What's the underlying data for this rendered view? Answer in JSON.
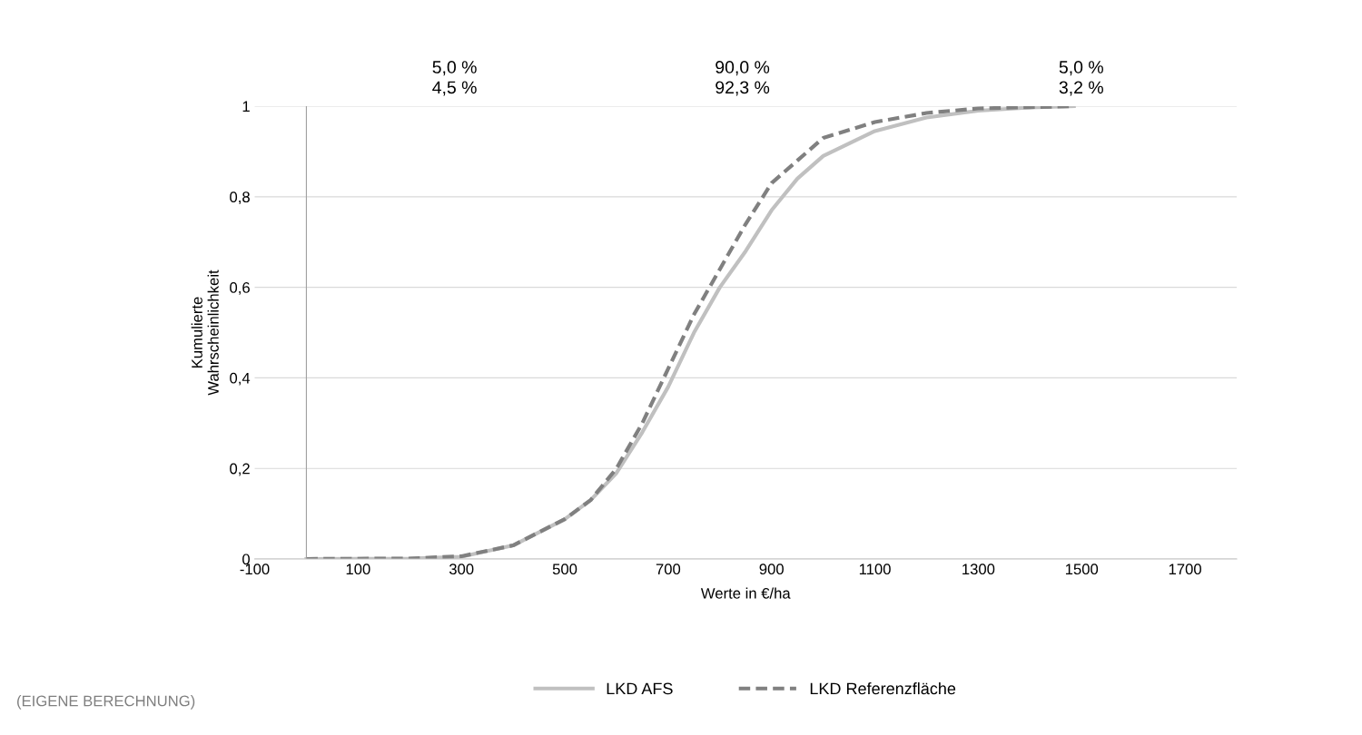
{
  "chart_data": {
    "type": "line",
    "xlabel": "Werte in €/ha",
    "ylabel": "Kumulierte\nWahrscheinlichkeit",
    "x": [
      0,
      200,
      300,
      400,
      500,
      550,
      600,
      650,
      700,
      750,
      800,
      850,
      900,
      950,
      1000,
      1100,
      1200,
      1300,
      1400,
      1485
    ],
    "series": [
      {
        "name": "LKD AFS",
        "color": "#c0c0c0",
        "line_style": "solid",
        "values": [
          0,
          0.001,
          0.005,
          0.03,
          0.088,
          0.13,
          0.19,
          0.28,
          0.38,
          0.5,
          0.6,
          0.68,
          0.77,
          0.84,
          0.89,
          0.945,
          0.975,
          0.99,
          0.997,
          1
        ]
      },
      {
        "name": "LKD Referenzfläche",
        "color": "#808080",
        "line_style": "dashed",
        "values": [
          0,
          0.001,
          0.006,
          0.03,
          0.088,
          0.13,
          0.2,
          0.3,
          0.42,
          0.54,
          0.64,
          0.74,
          0.83,
          0.88,
          0.93,
          0.965,
          0.985,
          0.995,
          0.998,
          1
        ]
      }
    ],
    "xlim": [
      -100,
      1800
    ],
    "xticks": [
      -100,
      100,
      300,
      500,
      700,
      900,
      1100,
      1300,
      1500,
      1700
    ],
    "ylim": [
      0,
      1
    ],
    "yticks": [
      0,
      {
        "value": 0.2,
        "label": "0,2"
      },
      {
        "value": 0.4,
        "label": "0,4"
      },
      {
        "value": 0.6,
        "label": "0,6"
      },
      {
        "value": 0.8,
        "label": "0,8"
      },
      1
    ],
    "grid": "y",
    "legend": "bottom",
    "marker": "none",
    "annotations": [
      "5,0 %\n4,5 %",
      "90,0 %\n92,3 %",
      "5,0 %\n3,2 %",
      "(EIGENE BERECHNUNG)"
    ]
  }
}
